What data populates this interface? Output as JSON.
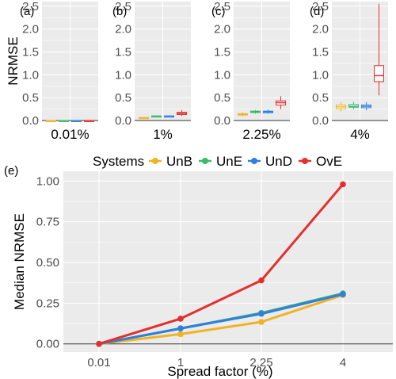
{
  "colors": {
    "panel_bg": "#EBEBEB",
    "grid": "#FFFFFF",
    "zero_line": "#333333",
    "text": "#000000",
    "tick_text": "#4D4D4D"
  },
  "legend": {
    "title": "Systems",
    "placement": "top",
    "items": [
      {
        "name": "UnB",
        "color": "#F0B323"
      },
      {
        "name": "UnE",
        "color": "#3DB86A"
      },
      {
        "name": "UnD",
        "color": "#2F7FE0"
      },
      {
        "name": "OvE",
        "color": "#E2302F"
      }
    ]
  },
  "chart_data": [
    {
      "type": "box",
      "panels": [
        {
          "tag": "(a)",
          "xlabel": "0.01%"
        },
        {
          "tag": "(b)",
          "xlabel": "1%"
        },
        {
          "tag": "(c)",
          "xlabel": "2.25%"
        },
        {
          "tag": "(d)",
          "xlabel": "4%"
        }
      ],
      "ylabel": "NRMSE",
      "ylim": [
        0,
        2.5
      ],
      "yticks": [
        "0.0",
        "0.5",
        "1.0",
        "1.5",
        "2.0",
        "2.5"
      ],
      "ytick_values": [
        0,
        0.5,
        1.0,
        1.5,
        2.0,
        2.5
      ],
      "series_names": [
        "UnB",
        "UnE",
        "UnD",
        "OvE"
      ],
      "boxes": [
        [
          {
            "min": 0,
            "q1": 0,
            "median": 0,
            "q3": 0,
            "max": 0
          },
          {
            "min": 0,
            "q1": 0,
            "median": 0,
            "q3": 0,
            "max": 0
          },
          {
            "min": 0,
            "q1": 0,
            "median": 0,
            "q3": 0,
            "max": 0
          },
          {
            "min": 0,
            "q1": 0,
            "median": 0,
            "q3": 0,
            "max": 0
          }
        ],
        [
          {
            "min": 0.05,
            "q1": 0.055,
            "median": 0.06,
            "q3": 0.065,
            "max": 0.07
          },
          {
            "min": 0.085,
            "q1": 0.09,
            "median": 0.095,
            "q3": 0.1,
            "max": 0.105
          },
          {
            "min": 0.085,
            "q1": 0.09,
            "median": 0.095,
            "q3": 0.1,
            "max": 0.105
          },
          {
            "min": 0.1,
            "q1": 0.13,
            "median": 0.155,
            "q3": 0.18,
            "max": 0.23
          }
        ],
        [
          {
            "min": 0.09,
            "q1": 0.12,
            "median": 0.135,
            "q3": 0.15,
            "max": 0.18
          },
          {
            "min": 0.15,
            "q1": 0.175,
            "median": 0.19,
            "q3": 0.205,
            "max": 0.23
          },
          {
            "min": 0.15,
            "q1": 0.17,
            "median": 0.19,
            "q3": 0.205,
            "max": 0.24
          },
          {
            "min": 0.25,
            "q1": 0.34,
            "median": 0.39,
            "q3": 0.43,
            "max": 0.53
          }
        ],
        [
          {
            "min": 0.2,
            "q1": 0.26,
            "median": 0.3,
            "q3": 0.34,
            "max": 0.4
          },
          {
            "min": 0.24,
            "q1": 0.29,
            "median": 0.31,
            "q3": 0.35,
            "max": 0.41
          },
          {
            "min": 0.22,
            "q1": 0.28,
            "median": 0.31,
            "q3": 0.34,
            "max": 0.4
          },
          {
            "min": 0.55,
            "q1": 0.85,
            "median": 0.98,
            "q3": 1.2,
            "max": 2.55
          }
        ]
      ]
    },
    {
      "type": "line",
      "tag": "(e)",
      "xlabel": "Spread factor (%)",
      "ylabel": "Median NRMSE",
      "categories": [
        "0.01",
        "1",
        "2.25",
        "4"
      ],
      "ylim": [
        0,
        1.0
      ],
      "yticks": [
        "0.00",
        "0.25",
        "0.50",
        "0.75",
        "1.00"
      ],
      "ytick_values": [
        0,
        0.25,
        0.5,
        0.75,
        1.0
      ],
      "grid": true,
      "series": [
        {
          "name": "UnB",
          "values": [
            0,
            0.06,
            0.135,
            0.3
          ]
        },
        {
          "name": "UnE",
          "values": [
            0,
            0.095,
            0.19,
            0.31
          ]
        },
        {
          "name": "UnD",
          "values": [
            0,
            0.095,
            0.185,
            0.305
          ]
        },
        {
          "name": "OvE",
          "values": [
            0,
            0.155,
            0.39,
            0.98
          ]
        }
      ]
    }
  ]
}
